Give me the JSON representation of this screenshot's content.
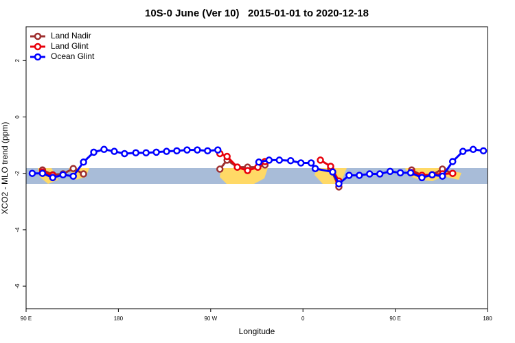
{
  "chart_data": {
    "type": "line",
    "title": "10S-0 June (Ver 10)   2015-01-01 to 2020-12-18",
    "x_label": "Longitude",
    "y_label": "XCO2 - MLO trend (ppm)",
    "xlim": [
      90,
      540
    ],
    "xticks": [
      {
        "value": 90,
        "label": "90 E"
      },
      180,
      {
        "value": 270,
        "label": "90 W"
      },
      {
        "value": 360,
        "label": "0"
      },
      {
        "value": 450,
        "label": "90 E"
      },
      {
        "value": 540,
        "label": "180"
      }
    ],
    "ylim": [
      -6.8,
      3.2
    ],
    "yticks": [
      -6,
      -4,
      -2,
      0,
      2
    ],
    "legend": "top-left",
    "series": [
      {
        "name": "Land Nadir",
        "color": "#9e2f2f",
        "x": [
          106,
          116,
          126,
          136,
          146,
          null,
          279,
          286,
          296,
          306,
          316,
          323,
          null,
          387,
          395,
          null,
          466,
          476,
          486,
          496,
          506
        ],
        "values": [
          -1.88,
          -2.05,
          -2.02,
          -1.83,
          -2.02,
          null,
          -1.85,
          -1.53,
          -1.78,
          -1.78,
          -1.78,
          -1.7,
          null,
          -1.83,
          -2.48,
          null,
          -1.88,
          -2.07,
          -2.05,
          -1.85,
          -2.0
        ]
      },
      {
        "name": "Land Glint",
        "color": "#e8000b",
        "x": [
          106,
          116,
          null,
          279,
          286,
          296,
          306,
          316,
          323,
          null,
          377,
          387,
          395,
          null,
          466,
          476,
          486,
          496,
          506
        ],
        "values": [
          -1.95,
          -2.07,
          null,
          -1.3,
          -1.4,
          -1.78,
          -1.9,
          -1.78,
          -1.58,
          null,
          -1.53,
          -1.75,
          -2.27,
          null,
          -1.97,
          -2.07,
          -2.05,
          -2.02,
          -2.0
        ]
      },
      {
        "name": "Ocean Glint",
        "color": "#0000ff",
        "x": [
          96,
          106,
          116,
          126,
          136,
          146,
          156,
          166,
          176,
          186,
          197,
          207,
          217,
          227,
          237,
          247,
          257,
          267,
          277,
          null,
          317,
          327,
          337,
          348,
          358,
          368,
          372,
          389,
          395,
          405,
          415,
          425,
          435,
          445,
          455,
          465,
          476,
          486,
          496,
          506,
          516,
          526,
          536
        ],
        "values": [
          -2.0,
          -2.0,
          -2.15,
          -2.05,
          -2.1,
          -1.6,
          -1.25,
          -1.15,
          -1.22,
          -1.3,
          -1.27,
          -1.27,
          -1.25,
          -1.22,
          -1.2,
          -1.17,
          -1.17,
          -1.2,
          -1.17,
          null,
          -1.6,
          -1.53,
          -1.53,
          -1.55,
          -1.63,
          -1.63,
          -1.83,
          -1.95,
          -2.37,
          -2.07,
          -2.07,
          -2.02,
          -2.02,
          -1.93,
          -1.98,
          -1.98,
          -2.15,
          -2.05,
          -2.1,
          -1.58,
          -1.22,
          -1.15,
          -1.2
        ]
      }
    ]
  }
}
